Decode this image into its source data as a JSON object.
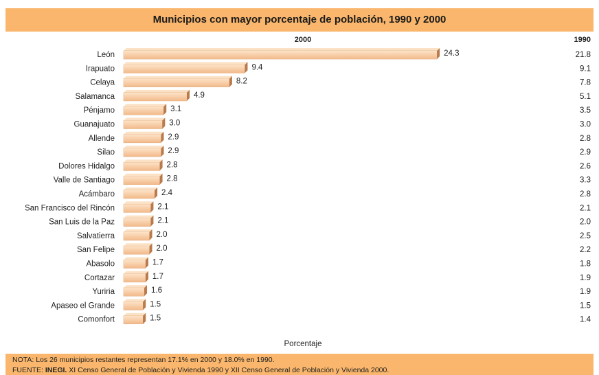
{
  "chart_data": {
    "type": "bar",
    "orientation": "horizontal",
    "title": "Municipios con mayor porcentaje de población, 1990 y 2000",
    "x_label": "Porcentaje",
    "categories": [
      "León",
      "Irapuato",
      "Celaya",
      "Salamanca",
      "Pénjamo",
      "Guanajuato",
      "Allende",
      "Silao",
      "Dolores Hidalgo",
      "Valle de Santiago",
      "Acámbaro",
      "San Francisco del Rincón",
      "San Luis de la Paz",
      "Salvatierra",
      "San Felipe",
      "Abasolo",
      "Cortazar",
      "Yuriria",
      "Apaseo el Grande",
      "Comonfort"
    ],
    "series": [
      {
        "name": "2000",
        "color": "#f8cda4",
        "values": [
          24.3,
          9.4,
          8.2,
          4.9,
          3.1,
          3.0,
          2.9,
          2.9,
          2.8,
          2.8,
          2.4,
          2.1,
          2.1,
          2.0,
          2.0,
          1.7,
          1.7,
          1.6,
          1.5,
          1.5
        ],
        "value_labels": [
          "24.3",
          "9.4",
          "8.2",
          "4.9",
          "3.1",
          "3.0",
          "2.9",
          "2.9",
          "2.8",
          "2.8",
          "2.4",
          "2.1",
          "2.1",
          "2.0",
          "2.0",
          "1.7",
          "1.7",
          "1.6",
          "1.5",
          "1.5"
        ]
      },
      {
        "name": "1990",
        "values": [
          21.8,
          9.1,
          7.8,
          5.1,
          3.5,
          3.0,
          2.8,
          2.9,
          2.6,
          3.3,
          2.8,
          2.1,
          2.0,
          2.5,
          2.2,
          1.8,
          1.9,
          1.9,
          1.5,
          1.4
        ],
        "value_labels": [
          "21.8",
          "9.1",
          "7.8",
          "5.1",
          "3.5",
          "3.0",
          "2.8",
          "2.9",
          "2.6",
          "3.3",
          "2.8",
          "2.1",
          "2.0",
          "2.5",
          "2.2",
          "1.8",
          "1.9",
          "1.9",
          "1.5",
          "1.4"
        ]
      }
    ],
    "notes": {
      "nota": "NOTA: Los 26 municipios restantes representan 17.1% en 2000 y 18.0% en 1990.",
      "fuente_prefix": "FUENTE:",
      "fuente_source": "INEGI.",
      "fuente_text": "XI Censo General de Población y Vivienda 1990 y XII Censo General de Población y Vivienda 2000."
    }
  }
}
